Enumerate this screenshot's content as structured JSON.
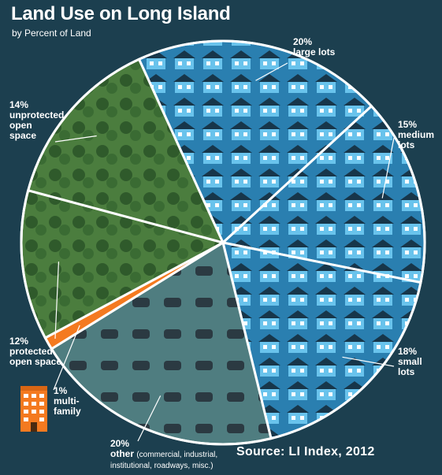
{
  "title": "Land Use on Long Island",
  "subtitle": "by Percent of Land",
  "source": "Source: LI Index, 2012",
  "colors": {
    "background": "#1c3f4f",
    "large_lots": "#3fa7d6",
    "medium_lots": "#42a6d4",
    "small_lots": "#47a9d7",
    "other": "#4f7d80",
    "multi_family": "#f47a20",
    "protected_open_space": "#3f6d3a",
    "unprotected_open_space": "#4a7a3c"
  },
  "chart_data": {
    "type": "pie",
    "title": "Land Use on Long Island",
    "subtitle": "by Percent of Land",
    "slices": [
      {
        "key": "large_lots",
        "pct_label": "20%",
        "name": "large lots",
        "value": 20
      },
      {
        "key": "medium_lots",
        "pct_label": "15%",
        "name": "medium\nlots",
        "value": 15
      },
      {
        "key": "small_lots",
        "pct_label": "18%",
        "name": "small\nlots",
        "value": 18
      },
      {
        "key": "other",
        "pct_label": "20%",
        "name": "other",
        "detail": "(commercial, industrial, institutional, roadways, misc.)",
        "value": 20
      },
      {
        "key": "multi_family",
        "pct_label": "1%",
        "name": "multi-\nfamily",
        "value": 1
      },
      {
        "key": "protected_open_space",
        "pct_label": "12%",
        "name": "protected\nopen space",
        "value": 12
      },
      {
        "key": "unprotected_open_space",
        "pct_label": "14%",
        "name": "unprotected\nopen\nspace",
        "value": 14
      }
    ]
  }
}
